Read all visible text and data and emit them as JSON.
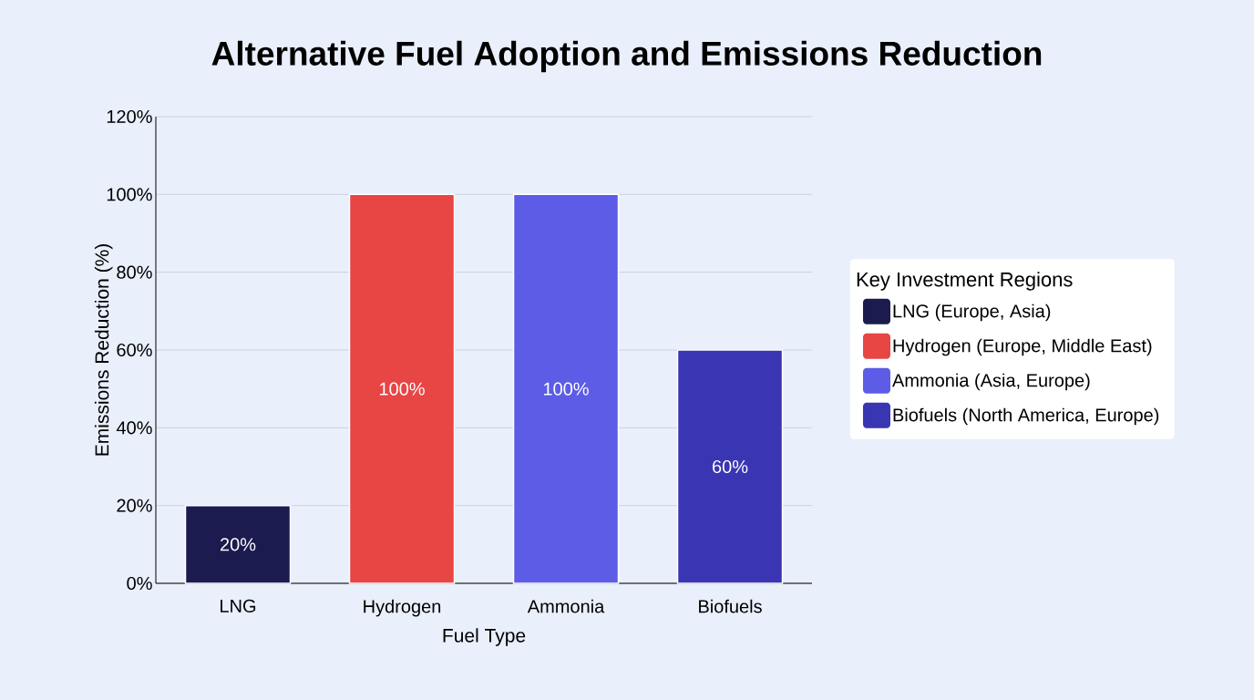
{
  "chart_data": {
    "type": "bar",
    "title": "Alternative Fuel Adoption and Emissions Reduction",
    "xlabel": "Fuel Type",
    "ylabel": "Emissions Reduction (%)",
    "legend_title": "Key Investment Regions",
    "categories": [
      "LNG",
      "Hydrogen",
      "Ammonia",
      "Biofuels"
    ],
    "series": [
      {
        "name": "LNG (Europe, Asia)",
        "color": "#1c1b4f",
        "values": [
          20,
          null,
          null,
          null
        ],
        "value_labels": [
          "20%",
          null,
          null,
          null
        ]
      },
      {
        "name": "Hydrogen (Europe, Middle East)",
        "color": "#e84545",
        "values": [
          null,
          100,
          null,
          null
        ],
        "value_labels": [
          null,
          "100%",
          null,
          null
        ]
      },
      {
        "name": "Ammonia (Asia, Europe)",
        "color": "#5c5ce6",
        "values": [
          null,
          null,
          100,
          null
        ],
        "value_labels": [
          null,
          null,
          "100%",
          null
        ]
      },
      {
        "name": "Biofuels (North America, Europe)",
        "color": "#3a35b3",
        "values": [
          null,
          null,
          null,
          60
        ],
        "value_labels": [
          null,
          null,
          null,
          "60%"
        ]
      }
    ],
    "ylim": [
      0,
      120
    ],
    "yticks": [
      {
        "value": 0,
        "label": "0%"
      },
      {
        "value": 20,
        "label": "20%"
      },
      {
        "value": 40,
        "label": "40%"
      },
      {
        "value": 60,
        "label": "60%"
      },
      {
        "value": 80,
        "label": "80%"
      },
      {
        "value": 100,
        "label": "100%"
      },
      {
        "value": 120,
        "label": "120%"
      }
    ],
    "grid": "y",
    "legend": "right"
  }
}
